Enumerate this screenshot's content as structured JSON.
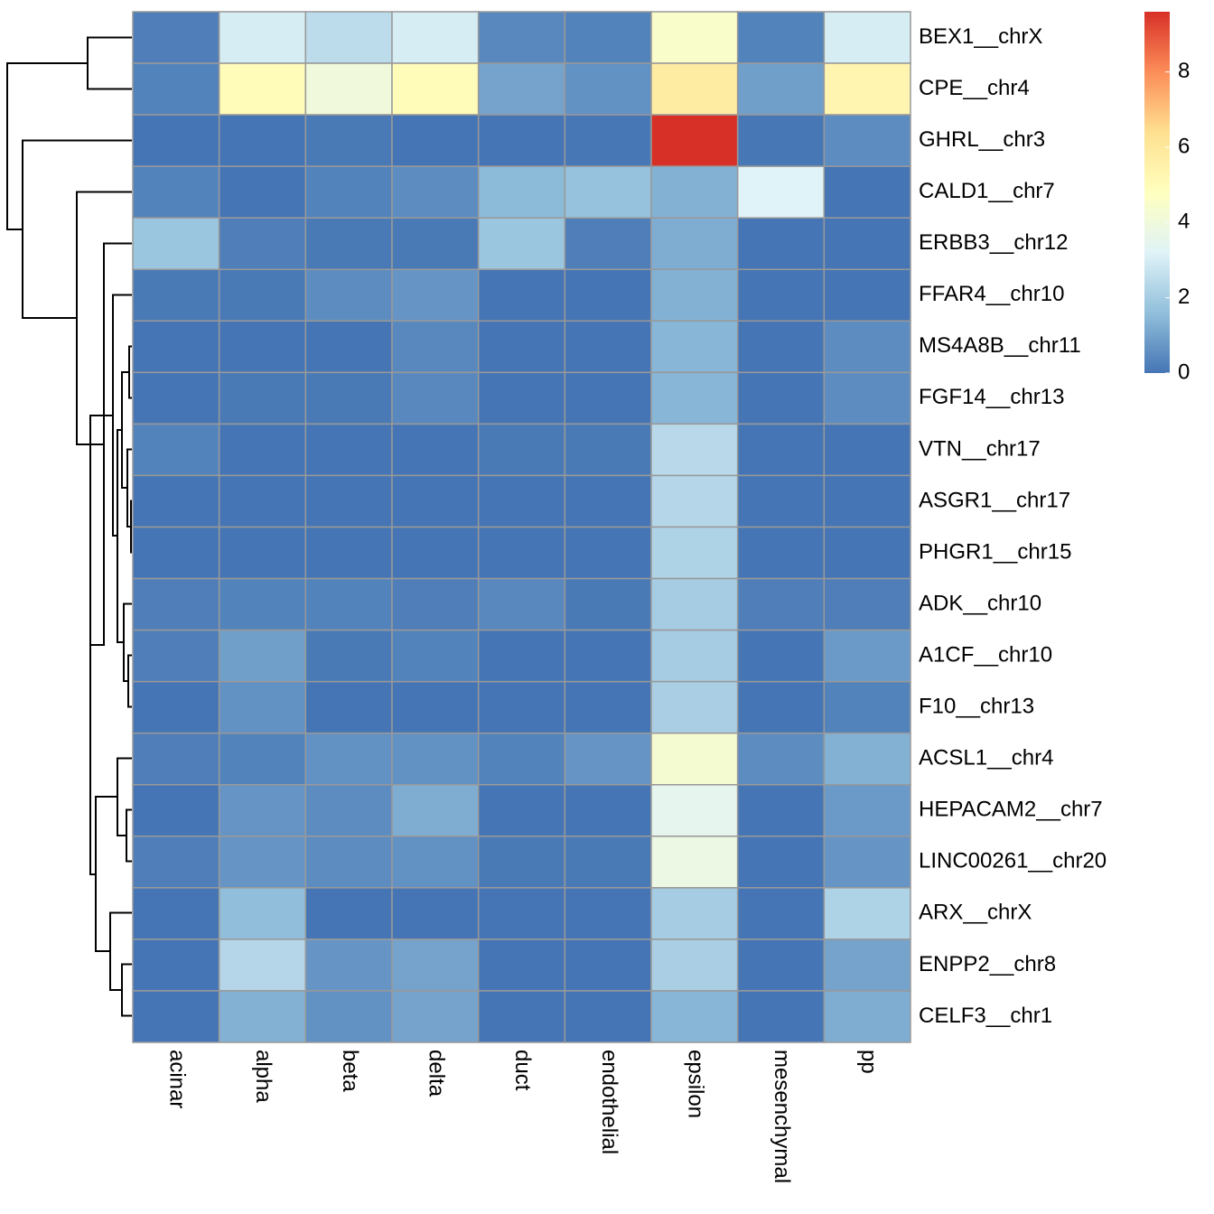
{
  "chart_data": {
    "type": "heatmap",
    "columns": [
      "acinar",
      "alpha",
      "beta",
      "delta",
      "duct",
      "endothelial",
      "epsilon",
      "mesenchymal",
      "pp"
    ],
    "rows": [
      "BEX1__chrX",
      "CPE__chr4",
      "GHRL__chr3",
      "CALD1__chr7",
      "ERBB3__chr12",
      "FFAR4__chr10",
      "MS4A8B__chr11",
      "FGF14__chr13",
      "VTN__chr17",
      "ASGR1__chr17",
      "PHGR1__chr15",
      "ADK__chr10",
      "A1CF__chr10",
      "F10__chr13",
      "ACSL1__chr4",
      "HEPACAM2__chr7",
      "LINC00261__chr20",
      "ARX__chrX",
      "ENPP2__chr8",
      "CELF3__chr1"
    ],
    "values": [
      [
        0.2,
        3.0,
        2.5,
        3.0,
        0.4,
        0.3,
        4.5,
        0.3,
        3.0
      ],
      [
        0.3,
        5.0,
        4.0,
        5.0,
        1.0,
        0.6,
        5.8,
        0.9,
        5.3
      ],
      [
        0,
        0,
        0.1,
        0,
        0,
        0.05,
        9.6,
        0.05,
        0.5
      ],
      [
        0.3,
        0,
        0.3,
        0.5,
        1.5,
        1.7,
        1.3,
        3.2,
        0
      ],
      [
        1.8,
        0.2,
        0.1,
        0.1,
        1.8,
        0.2,
        1.2,
        0,
        0
      ],
      [
        0.1,
        0.1,
        0.5,
        0.7,
        0,
        0,
        1.3,
        0,
        0
      ],
      [
        0,
        0,
        0,
        0.4,
        0,
        0,
        1.4,
        0,
        0.5
      ],
      [
        0,
        0.1,
        0.1,
        0.4,
        0,
        0,
        1.4,
        0,
        0.5
      ],
      [
        0.3,
        0,
        0,
        0,
        0.1,
        0.1,
        2.4,
        0,
        0
      ],
      [
        0,
        0,
        0,
        0,
        0,
        0,
        2.3,
        0,
        0
      ],
      [
        0,
        0,
        0,
        0,
        0,
        0,
        2.2,
        0,
        0
      ],
      [
        0.2,
        0.3,
        0.3,
        0.2,
        0.4,
        0.1,
        2.0,
        0.2,
        0.2
      ],
      [
        0.2,
        0.9,
        0.1,
        0.3,
        0,
        0,
        2.0,
        0,
        0.8
      ],
      [
        0,
        0.6,
        0,
        0,
        0,
        0,
        2.1,
        0,
        0.3
      ],
      [
        0.2,
        0.3,
        0.6,
        0.6,
        0.3,
        0.7,
        4.3,
        0.5,
        1.3
      ],
      [
        0,
        0.7,
        0.5,
        1.2,
        0,
        0,
        3.5,
        0,
        0.8
      ],
      [
        0.2,
        0.7,
        0.5,
        0.6,
        0.1,
        0.1,
        3.8,
        0,
        0.7
      ],
      [
        0,
        1.6,
        0,
        0,
        0,
        0,
        2.0,
        0,
        2.2
      ],
      [
        0,
        2.3,
        0.7,
        1.0,
        0,
        0,
        2.1,
        0,
        1.0
      ],
      [
        0,
        1.3,
        0.6,
        1.0,
        0,
        0,
        1.4,
        0,
        1.2
      ]
    ],
    "palette": [
      "#4575b4",
      "#91bfdb",
      "#e0f3f8",
      "#ffffbf",
      "#fee090",
      "#fc8d59",
      "#d73027"
    ],
    "zlim": [
      0,
      9.6
    ],
    "zticks": [
      0,
      2,
      4,
      6,
      8
    ]
  }
}
